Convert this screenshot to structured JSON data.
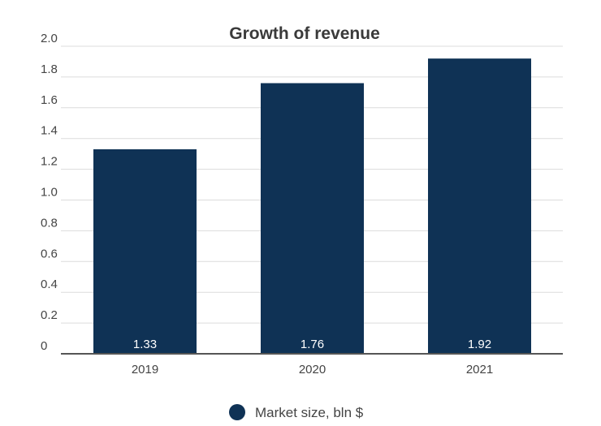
{
  "chart_data": {
    "type": "bar",
    "title": "Growth of revenue",
    "categories": [
      "2019",
      "2020",
      "2021"
    ],
    "series": [
      {
        "name": "Market size, bln $",
        "values": [
          1.33,
          1.76,
          1.92
        ],
        "color": "#0f3255"
      }
    ],
    "data_labels": [
      "1.33",
      "1.76",
      "1.92"
    ],
    "y_ticks": [
      "0",
      "0.2",
      "0.4",
      "0.6",
      "0.8",
      "1.0",
      "1.2",
      "1.4",
      "1.6",
      "1.8",
      "2.0"
    ],
    "y_tick_values": [
      0,
      0.2,
      0.4,
      0.6,
      0.8,
      1.0,
      1.2,
      1.4,
      1.6,
      1.8,
      2.0
    ],
    "ylim": [
      0,
      2.0
    ],
    "xlabel": "",
    "ylabel": "",
    "grid": true,
    "legend_position": "bottom"
  }
}
